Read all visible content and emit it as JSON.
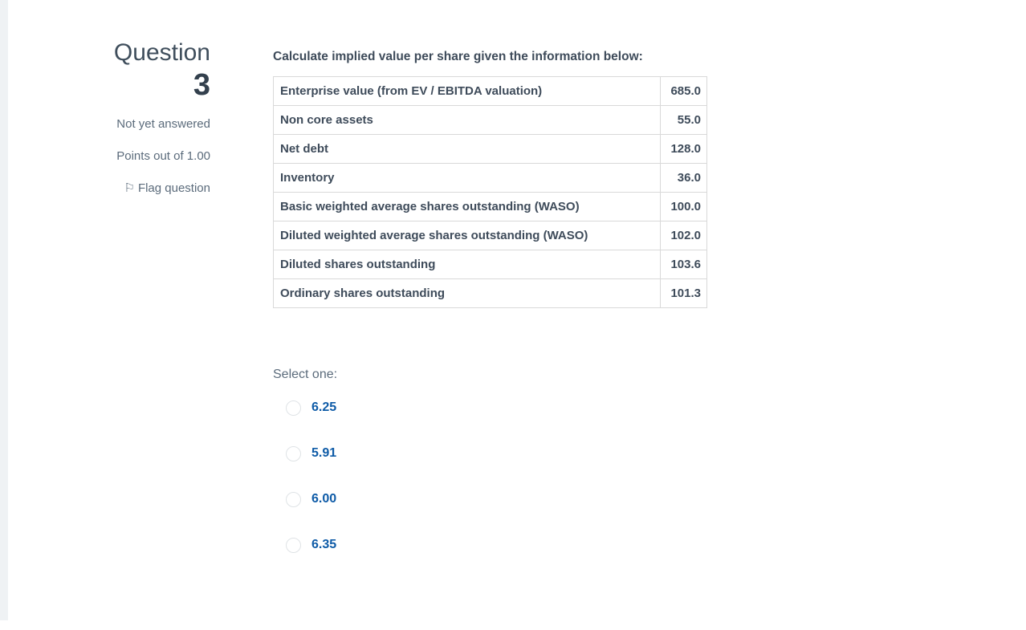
{
  "sidebar": {
    "question_label": "Question",
    "question_number": "3",
    "status": "Not yet answered",
    "points": "Points out of 1.00",
    "flag_label": "Flag question",
    "flag_icon": "flag-outline"
  },
  "question": {
    "prompt": "Calculate implied value per share given the information below:",
    "table": {
      "rows": [
        {
          "label": "Enterprise value (from EV / EBITDA valuation)",
          "value": "685.0"
        },
        {
          "label": "Non core assets",
          "value": "55.0"
        },
        {
          "label": "Net debt",
          "value": "128.0"
        },
        {
          "label": "Inventory",
          "value": "36.0"
        },
        {
          "label": "Basic weighted average shares outstanding (WASO)",
          "value": "100.0"
        },
        {
          "label": "Diluted weighted average shares outstanding (WASO)",
          "value": "102.0"
        },
        {
          "label": "Diluted shares outstanding",
          "value": "103.6"
        },
        {
          "label": "Ordinary shares outstanding",
          "value": "101.3"
        }
      ]
    },
    "select_prompt": "Select one:",
    "options": [
      {
        "label": "6.25",
        "selected": false
      },
      {
        "label": "5.91",
        "selected": false
      },
      {
        "label": "6.00",
        "selected": false
      },
      {
        "label": "6.35",
        "selected": false
      }
    ]
  },
  "colors": {
    "accent_blue": "#0e5ba7",
    "text_dark": "#3e4b5a",
    "text_muted": "#5b6b7b",
    "table_border": "#d9d9d9",
    "left_strip": "#eff2f4"
  }
}
